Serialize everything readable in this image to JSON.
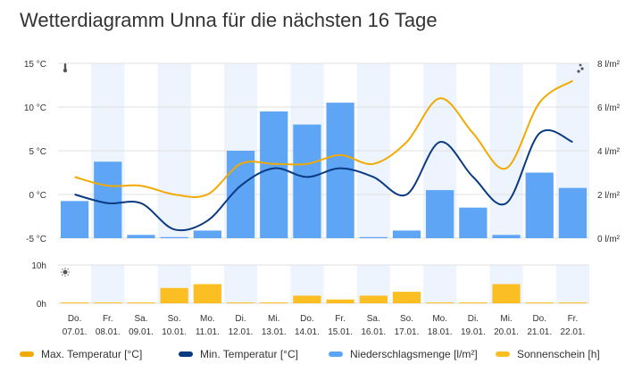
{
  "chart_data": {
    "type": "bar",
    "title": "Wetterdiagramm Unna für die nächsten 16 Tage",
    "days": [
      {
        "weekday": "Do.",
        "date": "07.01."
      },
      {
        "weekday": "Fr.",
        "date": "08.01."
      },
      {
        "weekday": "Sa.",
        "date": "09.01."
      },
      {
        "weekday": "So.",
        "date": "10.01."
      },
      {
        "weekday": "Mo.",
        "date": "11.01."
      },
      {
        "weekday": "Di.",
        "date": "12.01."
      },
      {
        "weekday": "Mi.",
        "date": "13.01."
      },
      {
        "weekday": "Do.",
        "date": "14.01."
      },
      {
        "weekday": "Fr.",
        "date": "15.01."
      },
      {
        "weekday": "Sa.",
        "date": "16.01."
      },
      {
        "weekday": "So.",
        "date": "17.01."
      },
      {
        "weekday": "Mo.",
        "date": "18.01."
      },
      {
        "weekday": "Di.",
        "date": "19.01."
      },
      {
        "weekday": "Mi.",
        "date": "20.01."
      },
      {
        "weekday": "Do.",
        "date": "21.01."
      },
      {
        "weekday": "Fr.",
        "date": "22.01."
      }
    ],
    "temperature_axis": {
      "ticks": [
        "15 °C",
        "10 °C",
        "5 °C",
        "0 °C",
        "-5 °C"
      ],
      "ylim": [
        -5,
        15
      ]
    },
    "precip_axis": {
      "ticks": [
        "8 l/m²",
        "6 l/m²",
        "4 l/m²",
        "2 l/m²",
        "0 l/m²"
      ],
      "ylim": [
        0,
        8
      ]
    },
    "sun_axis": {
      "ticks": [
        "10h",
        "0h"
      ],
      "ylim": [
        0,
        10
      ]
    },
    "series": [
      {
        "name": "Max. Temperatur [°C]",
        "color": "#f2a900",
        "type": "line",
        "axis": "temperature",
        "values": [
          2,
          1,
          1,
          0,
          0,
          3.5,
          3.5,
          3.5,
          4.5,
          3.5,
          6,
          11,
          7,
          3,
          10.5,
          13
        ]
      },
      {
        "name": "Min. Temperatur [°C]",
        "color": "#0a3a82",
        "type": "line",
        "axis": "temperature",
        "values": [
          0,
          -1,
          -1,
          -4,
          -3,
          1,
          3,
          2,
          3,
          2,
          0,
          6,
          2,
          -1,
          7,
          6
        ]
      },
      {
        "name": "Niederschlagsmenge [l/m²]",
        "color": "#5fa5f5",
        "type": "bar",
        "axis": "precipitation",
        "values": [
          1.7,
          3.5,
          0.15,
          0.05,
          0.35,
          4.0,
          5.8,
          5.2,
          6.2,
          0.05,
          0.35,
          2.2,
          1.4,
          0.15,
          3.0,
          2.3
        ]
      },
      {
        "name": "Sonnenschein [h]",
        "color": "#fbbf24",
        "type": "bar",
        "axis": "sunshine",
        "values": [
          0,
          0,
          0,
          4,
          5,
          0,
          0,
          2,
          1,
          2,
          3,
          0,
          0,
          5,
          0,
          0
        ]
      }
    ],
    "grid": true,
    "legend_position": "bottom"
  },
  "colors": {
    "band": "#eef4fd",
    "grid": "#e0e0e0"
  },
  "icons": {
    "temperature": "thermometer-icon",
    "precipitation": "raindrops-icon",
    "sunshine": "sun-icon"
  }
}
